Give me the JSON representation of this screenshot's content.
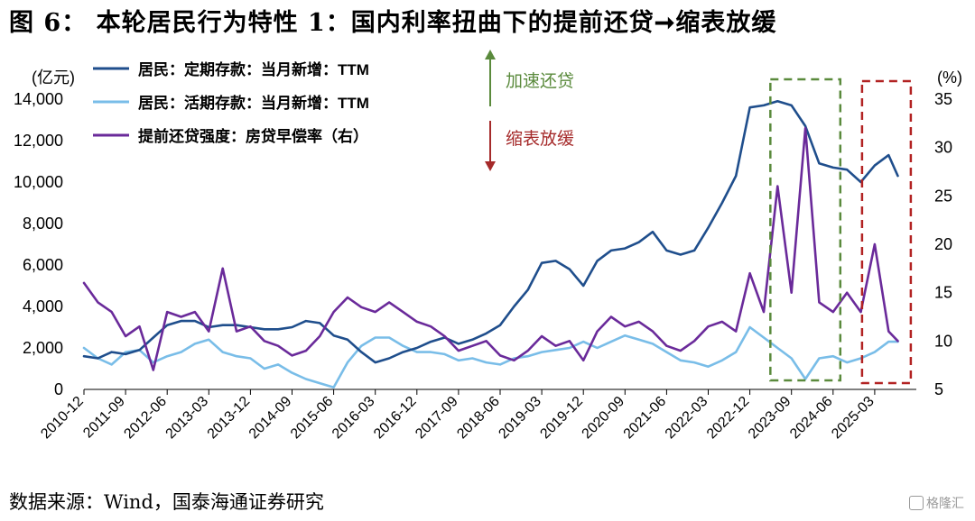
{
  "figure": {
    "title": "图 6：  本轮居民行为特性 1：国内利率扭曲下的提前还贷➞缩表放缓",
    "source": "数据来源：Wind，国泰海通证券研究",
    "watermark": "格隆汇"
  },
  "colors": {
    "deposit_fixed": "#1f4e8c",
    "deposit_demand": "#79bde8",
    "prepayment": "#6a2a9a",
    "accelerate_arrow": "#5a8a3c",
    "slowdown_arrow": "#a52a2a",
    "box_green": "#5a8a3c",
    "box_red": "#b22222",
    "axis": "#000000"
  },
  "chart_data": {
    "type": "line",
    "left_axis_label": "(亿元)",
    "right_axis_label": "(%)",
    "ylim_left": [
      0,
      14000
    ],
    "yticks_left": [
      "0",
      "2,000",
      "4,000",
      "6,000",
      "8,000",
      "10,000",
      "12,000",
      "14,000"
    ],
    "ylim_right": [
      5,
      35
    ],
    "yticks_right": [
      "5",
      "10",
      "15",
      "20",
      "25",
      "30",
      "35"
    ],
    "x_tick_labels": [
      "2010-12",
      "2011-09",
      "2012-06",
      "2013-03",
      "2013-12",
      "2014-09",
      "2015-06",
      "2016-03",
      "2016-12",
      "2017-09",
      "2018-06",
      "2019-03",
      "2019-12",
      "2020-09",
      "2021-06",
      "2022-03",
      "2022-12",
      "2023-09",
      "2024-06",
      "2025-03"
    ],
    "grid": false,
    "legend_position": "top-left",
    "annotations": {
      "accelerate_label": "加速还贷",
      "slowdown_label": "缩表放缓"
    },
    "series": [
      {
        "name": "居民：定期存款：当月新增：TTM",
        "axis": "left",
        "points": [
          [
            "2010-12",
            1600
          ],
          [
            "2011-03",
            1500
          ],
          [
            "2011-06",
            1800
          ],
          [
            "2011-09",
            1700
          ],
          [
            "2011-12",
            1900
          ],
          [
            "2012-03",
            2500
          ],
          [
            "2012-06",
            3100
          ],
          [
            "2012-09",
            3300
          ],
          [
            "2012-12",
            3300
          ],
          [
            "2013-03",
            3000
          ],
          [
            "2013-06",
            3100
          ],
          [
            "2013-09",
            3100
          ],
          [
            "2013-12",
            3000
          ],
          [
            "2014-03",
            2900
          ],
          [
            "2014-06",
            2900
          ],
          [
            "2014-09",
            3000
          ],
          [
            "2014-12",
            3300
          ],
          [
            "2015-03",
            3200
          ],
          [
            "2015-06",
            2600
          ],
          [
            "2015-09",
            2400
          ],
          [
            "2015-12",
            1800
          ],
          [
            "2016-03",
            1300
          ],
          [
            "2016-06",
            1500
          ],
          [
            "2016-09",
            1800
          ],
          [
            "2016-12",
            2000
          ],
          [
            "2017-03",
            2300
          ],
          [
            "2017-06",
            2500
          ],
          [
            "2017-09",
            2200
          ],
          [
            "2017-12",
            2400
          ],
          [
            "2018-03",
            2700
          ],
          [
            "2018-06",
            3100
          ],
          [
            "2018-09",
            4000
          ],
          [
            "2018-12",
            4800
          ],
          [
            "2019-03",
            6100
          ],
          [
            "2019-06",
            6200
          ],
          [
            "2019-09",
            5800
          ],
          [
            "2019-12",
            5000
          ],
          [
            "2020-03",
            6200
          ],
          [
            "2020-06",
            6700
          ],
          [
            "2020-09",
            6800
          ],
          [
            "2020-12",
            7100
          ],
          [
            "2021-03",
            7600
          ],
          [
            "2021-06",
            6700
          ],
          [
            "2021-09",
            6500
          ],
          [
            "2021-12",
            6700
          ],
          [
            "2022-03",
            7800
          ],
          [
            "2022-06",
            9000
          ],
          [
            "2022-09",
            10300
          ],
          [
            "2022-12",
            13600
          ],
          [
            "2023-03",
            13700
          ],
          [
            "2023-06",
            13900
          ],
          [
            "2023-09",
            13700
          ],
          [
            "2023-12",
            12700
          ],
          [
            "2024-03",
            10900
          ],
          [
            "2024-06",
            10700
          ],
          [
            "2024-09",
            10600
          ],
          [
            "2024-12",
            10000
          ],
          [
            "2025-03",
            10800
          ],
          [
            "2025-06",
            11300
          ],
          [
            "2025-08",
            10300
          ]
        ]
      },
      {
        "name": "居民：活期存款：当月新增：TTM",
        "axis": "left",
        "points": [
          [
            "2010-12",
            2000
          ],
          [
            "2011-03",
            1500
          ],
          [
            "2011-06",
            1200
          ],
          [
            "2011-09",
            1800
          ],
          [
            "2011-12",
            1900
          ],
          [
            "2012-03",
            1300
          ],
          [
            "2012-06",
            1600
          ],
          [
            "2012-09",
            1800
          ],
          [
            "2012-12",
            2200
          ],
          [
            "2013-03",
            2400
          ],
          [
            "2013-06",
            1800
          ],
          [
            "2013-09",
            1600
          ],
          [
            "2013-12",
            1500
          ],
          [
            "2014-03",
            1000
          ],
          [
            "2014-06",
            1200
          ],
          [
            "2014-09",
            800
          ],
          [
            "2014-12",
            500
          ],
          [
            "2015-03",
            300
          ],
          [
            "2015-06",
            100
          ],
          [
            "2015-09",
            1300
          ],
          [
            "2015-12",
            2100
          ],
          [
            "2016-03",
            2500
          ],
          [
            "2016-06",
            2500
          ],
          [
            "2016-09",
            2100
          ],
          [
            "2016-12",
            1800
          ],
          [
            "2017-03",
            1800
          ],
          [
            "2017-06",
            1700
          ],
          [
            "2017-09",
            1400
          ],
          [
            "2017-12",
            1500
          ],
          [
            "2018-03",
            1300
          ],
          [
            "2018-06",
            1200
          ],
          [
            "2018-09",
            1500
          ],
          [
            "2018-12",
            1600
          ],
          [
            "2019-03",
            1800
          ],
          [
            "2019-06",
            1900
          ],
          [
            "2019-09",
            2000
          ],
          [
            "2019-12",
            2300
          ],
          [
            "2020-03",
            2000
          ],
          [
            "2020-06",
            2300
          ],
          [
            "2020-09",
            2600
          ],
          [
            "2020-12",
            2400
          ],
          [
            "2021-03",
            2200
          ],
          [
            "2021-06",
            1800
          ],
          [
            "2021-09",
            1400
          ],
          [
            "2021-12",
            1300
          ],
          [
            "2022-03",
            1100
          ],
          [
            "2022-06",
            1400
          ],
          [
            "2022-09",
            1800
          ],
          [
            "2022-12",
            3000
          ],
          [
            "2023-03",
            2500
          ],
          [
            "2023-06",
            2000
          ],
          [
            "2023-09",
            1500
          ],
          [
            "2023-12",
            500
          ],
          [
            "2024-03",
            1500
          ],
          [
            "2024-06",
            1600
          ],
          [
            "2024-09",
            1300
          ],
          [
            "2024-12",
            1500
          ],
          [
            "2025-03",
            1800
          ],
          [
            "2025-06",
            2300
          ],
          [
            "2025-08",
            2300
          ]
        ]
      },
      {
        "name": "提前还贷强度：房贷早偿率（右）",
        "axis": "right",
        "points": [
          [
            "2010-12",
            16.0
          ],
          [
            "2011-03",
            14.0
          ],
          [
            "2011-06",
            13.0
          ],
          [
            "2011-09",
            10.5
          ],
          [
            "2011-12",
            11.5
          ],
          [
            "2012-03",
            7.0
          ],
          [
            "2012-06",
            13.0
          ],
          [
            "2012-09",
            12.5
          ],
          [
            "2012-12",
            13.0
          ],
          [
            "2013-03",
            11.0
          ],
          [
            "2013-06",
            17.5
          ],
          [
            "2013-09",
            11.0
          ],
          [
            "2013-12",
            11.5
          ],
          [
            "2014-03",
            10.0
          ],
          [
            "2014-06",
            9.5
          ],
          [
            "2014-09",
            8.5
          ],
          [
            "2014-12",
            9.0
          ],
          [
            "2015-03",
            10.5
          ],
          [
            "2015-06",
            13.0
          ],
          [
            "2015-09",
            14.5
          ],
          [
            "2015-12",
            13.5
          ],
          [
            "2016-03",
            13.0
          ],
          [
            "2016-06",
            14.0
          ],
          [
            "2016-09",
            13.0
          ],
          [
            "2016-12",
            12.0
          ],
          [
            "2017-03",
            11.5
          ],
          [
            "2017-06",
            10.5
          ],
          [
            "2017-09",
            9.0
          ],
          [
            "2017-12",
            9.5
          ],
          [
            "2018-03",
            10.0
          ],
          [
            "2018-06",
            8.5
          ],
          [
            "2018-09",
            8.0
          ],
          [
            "2018-12",
            9.0
          ],
          [
            "2019-03",
            10.5
          ],
          [
            "2019-06",
            9.5
          ],
          [
            "2019-09",
            10.0
          ],
          [
            "2019-12",
            8.0
          ],
          [
            "2020-03",
            11.0
          ],
          [
            "2020-06",
            12.5
          ],
          [
            "2020-09",
            11.5
          ],
          [
            "2020-12",
            12.0
          ],
          [
            "2021-03",
            11.0
          ],
          [
            "2021-06",
            9.5
          ],
          [
            "2021-09",
            9.0
          ],
          [
            "2021-12",
            10.0
          ],
          [
            "2022-03",
            11.5
          ],
          [
            "2022-06",
            12.0
          ],
          [
            "2022-09",
            11.0
          ],
          [
            "2022-12",
            17.0
          ],
          [
            "2023-03",
            13.0
          ],
          [
            "2023-06",
            26.0
          ],
          [
            "2023-09",
            15.0
          ],
          [
            "2023-12",
            32.0
          ],
          [
            "2024-03",
            14.0
          ],
          [
            "2024-06",
            13.0
          ],
          [
            "2024-09",
            15.0
          ],
          [
            "2024-12",
            13.0
          ],
          [
            "2025-03",
            20.0
          ],
          [
            "2025-06",
            11.0
          ],
          [
            "2025-08",
            10.0
          ]
        ]
      }
    ],
    "highlight_boxes": [
      {
        "from": "2023-06",
        "to": "2024-06",
        "color": "green"
      },
      {
        "from": "2025-03",
        "to": "2025-08",
        "color": "red"
      }
    ]
  }
}
